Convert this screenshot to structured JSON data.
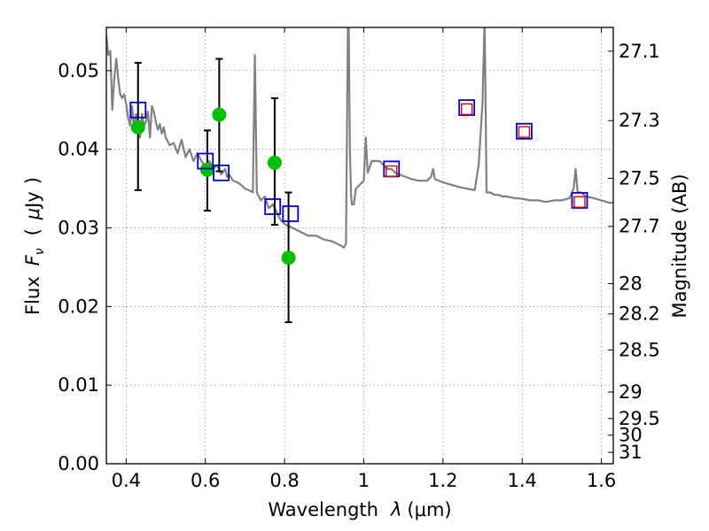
{
  "chart_data": {
    "type": "scatter",
    "title": "",
    "xlabel": "Wavelength  λ (μm)",
    "ylabel_left": "Flux  F_ν  ( μJy )",
    "ylabel_left_parts": {
      "prefix": "Flux",
      "symbol": "F",
      "subscript": "ν",
      "open": "(",
      "mu": "μ",
      "unit": "Jy",
      "close": ")"
    },
    "xlabel_parts": {
      "prefix": "Wavelength",
      "symbol": "λ",
      "unit": "(μm)"
    },
    "ylabel_right": "Magnitude (AB)",
    "xlim": [
      0.35,
      1.63
    ],
    "ylim": [
      0.0,
      0.0555
    ],
    "grid": true,
    "x_ticks": [
      {
        "value": 0.4,
        "label": "0.4"
      },
      {
        "value": 0.6,
        "label": "0.6"
      },
      {
        "value": 0.8,
        "label": "0.8"
      },
      {
        "value": 1.0,
        "label": "1"
      },
      {
        "value": 1.2,
        "label": "1.2"
      },
      {
        "value": 1.4,
        "label": "1.4"
      },
      {
        "value": 1.6,
        "label": "1.6"
      }
    ],
    "y_ticks": [
      {
        "value": 0.0,
        "label": "0.00"
      },
      {
        "value": 0.01,
        "label": "0.01"
      },
      {
        "value": 0.02,
        "label": "0.02"
      },
      {
        "value": 0.03,
        "label": "0.03"
      },
      {
        "value": 0.04,
        "label": "0.04"
      },
      {
        "value": 0.05,
        "label": "0.05"
      }
    ],
    "mag_ticks": [
      {
        "value": 27.1,
        "label": "27.1"
      },
      {
        "value": 27.3,
        "label": "27.3"
      },
      {
        "value": 27.5,
        "label": "27.5"
      },
      {
        "value": 27.7,
        "label": "27.7"
      },
      {
        "value": 28.0,
        "label": "28"
      },
      {
        "value": 28.2,
        "label": "28.2"
      },
      {
        "value": 28.5,
        "label": "28.5"
      },
      {
        "value": 29.0,
        "label": "29"
      },
      {
        "value": 29.5,
        "label": "29.5"
      },
      {
        "value": 30.0,
        "label": "30"
      },
      {
        "value": 31.0,
        "label": "31"
      }
    ],
    "series": [
      {
        "kind": "line",
        "color": "#808080",
        "x": [
          0.35,
          0.355,
          0.36,
          0.365,
          0.37,
          0.375,
          0.38,
          0.385,
          0.39,
          0.395,
          0.4,
          0.405,
          0.41,
          0.415,
          0.42,
          0.425,
          0.43,
          0.435,
          0.44,
          0.445,
          0.45,
          0.455,
          0.46,
          0.465,
          0.47,
          0.475,
          0.48,
          0.485,
          0.49,
          0.495,
          0.5,
          0.51,
          0.52,
          0.53,
          0.54,
          0.55,
          0.56,
          0.57,
          0.58,
          0.59,
          0.6,
          0.61,
          0.62,
          0.63,
          0.64,
          0.65,
          0.655,
          0.66,
          0.67,
          0.68,
          0.69,
          0.7,
          0.71,
          0.72,
          0.725,
          0.73,
          0.735,
          0.74,
          0.75,
          0.76,
          0.77,
          0.78,
          0.79,
          0.8,
          0.82,
          0.84,
          0.86,
          0.88,
          0.9,
          0.92,
          0.94,
          0.95,
          0.955,
          0.96,
          0.962,
          0.965,
          0.968,
          0.97,
          0.975,
          0.98,
          0.99,
          1.0,
          1.005,
          1.01,
          1.02,
          1.03,
          1.04,
          1.05,
          1.06,
          1.07,
          1.08,
          1.09,
          1.1,
          1.12,
          1.14,
          1.16,
          1.17,
          1.175,
          1.18,
          1.2,
          1.22,
          1.24,
          1.26,
          1.28,
          1.29,
          1.3,
          1.305,
          1.31,
          1.32,
          1.33,
          1.34,
          1.35,
          1.36,
          1.38,
          1.4,
          1.42,
          1.44,
          1.46,
          1.48,
          1.5,
          1.52,
          1.53,
          1.535,
          1.54,
          1.55,
          1.56,
          1.58,
          1.6,
          1.62,
          1.63
        ],
        "y": [
          0.0545,
          0.052,
          0.0525,
          0.045,
          0.049,
          0.0515,
          0.049,
          0.047,
          0.0465,
          0.047,
          0.0458,
          0.044,
          0.043,
          0.0455,
          0.0425,
          0.0445,
          0.0435,
          0.0415,
          0.0445,
          0.043,
          0.0435,
          0.0448,
          0.0415,
          0.0455,
          0.0448,
          0.0435,
          0.0425,
          0.0432,
          0.042,
          0.0428,
          0.0415,
          0.0405,
          0.0408,
          0.0395,
          0.0412,
          0.039,
          0.04,
          0.0385,
          0.0395,
          0.0385,
          0.0378,
          0.0385,
          0.0375,
          0.038,
          0.0368,
          0.0375,
          0.0365,
          0.0368,
          0.036,
          0.0358,
          0.0355,
          0.035,
          0.0348,
          0.0345,
          0.052,
          0.0345,
          0.034,
          0.0335,
          0.034,
          0.0325,
          0.033,
          0.032,
          0.031,
          0.0305,
          0.03,
          0.0295,
          0.029,
          0.029,
          0.0285,
          0.0283,
          0.0278,
          0.0275,
          0.028,
          0.0565,
          0.056,
          0.04,
          0.034,
          0.033,
          0.033,
          0.035,
          0.0355,
          0.036,
          0.0415,
          0.037,
          0.0385,
          0.0385,
          0.0385,
          0.038,
          0.0375,
          0.0375,
          0.037,
          0.0368,
          0.0366,
          0.0362,
          0.036,
          0.036,
          0.0365,
          0.0375,
          0.0362,
          0.0358,
          0.0355,
          0.0352,
          0.035,
          0.0348,
          0.038,
          0.046,
          0.057,
          0.0345,
          0.0345,
          0.0342,
          0.0342,
          0.034,
          0.034,
          0.0338,
          0.0337,
          0.0335,
          0.0335,
          0.0333,
          0.0335,
          0.0335,
          0.0338,
          0.035,
          0.0375,
          0.0345,
          0.0345,
          0.034,
          0.0338,
          0.0335,
          0.0332,
          0.0332
        ]
      },
      {
        "kind": "points",
        "marker": "circle",
        "color": "#00c000",
        "x": [
          0.43,
          0.605,
          0.635,
          0.775,
          0.81
        ],
        "y": [
          0.0428,
          0.0374,
          0.0444,
          0.0383,
          0.0262
        ],
        "yerr_low": [
          0.008,
          0.0052,
          0.0072,
          0.0079,
          0.0082
        ],
        "yerr_high": [
          0.0082,
          0.005,
          0.0071,
          0.0082,
          0.0083
        ]
      },
      {
        "kind": "points",
        "marker": "square",
        "color": "#0000cc",
        "x": [
          0.43,
          0.6,
          0.64,
          0.77,
          0.815,
          1.07,
          1.26,
          1.405,
          1.545
        ],
        "y": [
          0.045,
          0.0385,
          0.037,
          0.0327,
          0.0318,
          0.0375,
          0.0453,
          0.0423,
          0.0335
        ]
      },
      {
        "kind": "points",
        "marker": "square-small",
        "color": "#dd0000",
        "x": [
          1.07,
          1.26,
          1.405,
          1.545
        ],
        "y": [
          0.0372,
          0.0451,
          0.0422,
          0.0333
        ]
      }
    ]
  }
}
